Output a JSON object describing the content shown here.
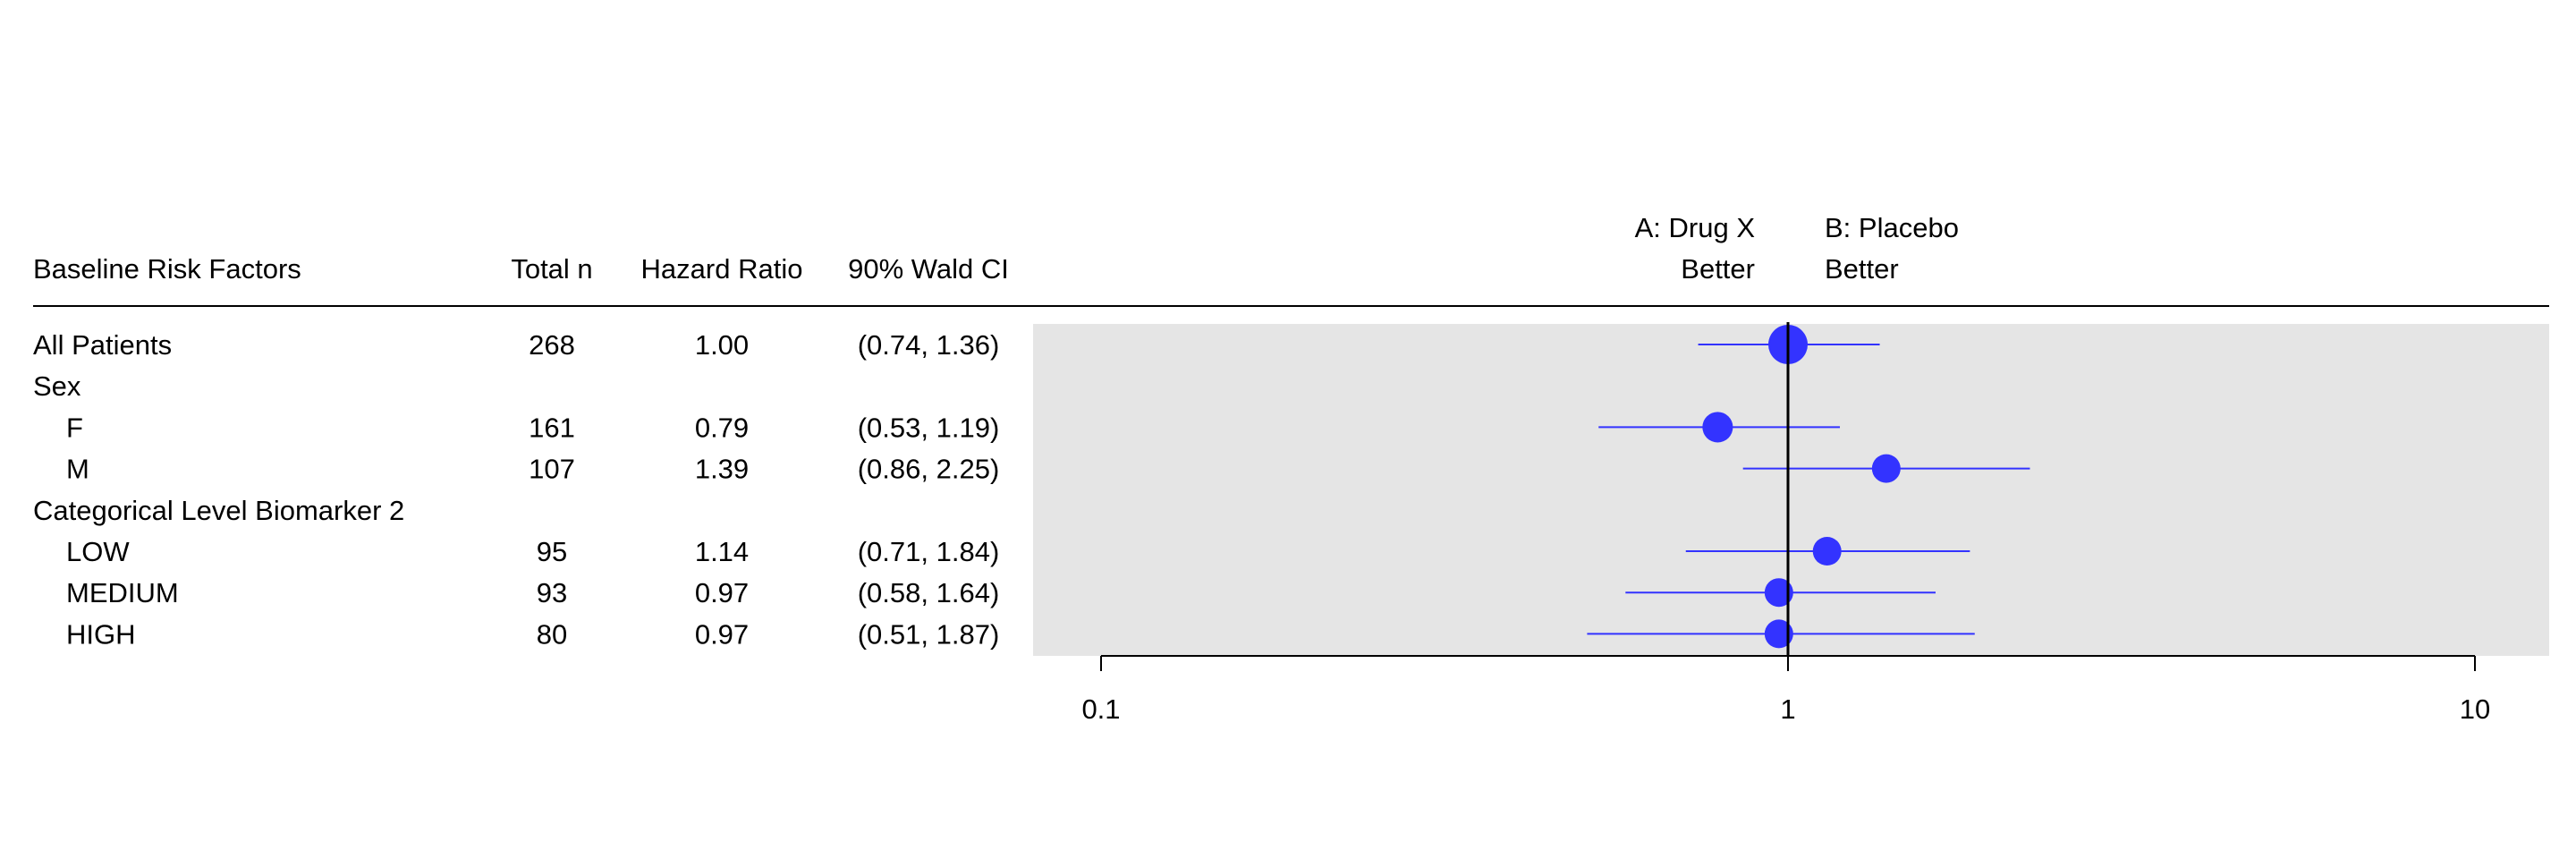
{
  "chart_data": {
    "type": "forest",
    "columns": [
      "Baseline Risk Factors",
      "Total n",
      "Hazard Ratio",
      "90% Wald CI"
    ],
    "favors_left": [
      "A: Drug X",
      "Better"
    ],
    "favors_right": [
      "B: Placebo",
      "Better"
    ],
    "x_scale": "log",
    "xlim": [
      0.1,
      10
    ],
    "x_ticks": [
      0.1,
      1,
      10
    ],
    "x_tick_labels": [
      "0.1",
      "1",
      "10"
    ],
    "reference_line": 1,
    "rows": [
      {
        "label": "All Patients",
        "indent": 0,
        "n": "268",
        "hr": "1.00",
        "ci": "(0.74, 1.36)",
        "est": 1.0,
        "lo": 0.74,
        "hi": 1.36
      },
      {
        "label": "Sex",
        "indent": 0
      },
      {
        "label": "F",
        "indent": 1,
        "n": "161",
        "hr": "0.79",
        "ci": "(0.53, 1.19)",
        "est": 0.79,
        "lo": 0.53,
        "hi": 1.19
      },
      {
        "label": "M",
        "indent": 1,
        "n": "107",
        "hr": "1.39",
        "ci": "(0.86, 2.25)",
        "est": 1.39,
        "lo": 0.86,
        "hi": 2.25
      },
      {
        "label": "Categorical Level Biomarker 2",
        "indent": 0
      },
      {
        "label": "LOW",
        "indent": 1,
        "n": "95",
        "hr": "1.14",
        "ci": "(0.71, 1.84)",
        "est": 1.14,
        "lo": 0.71,
        "hi": 1.84
      },
      {
        "label": "MEDIUM",
        "indent": 1,
        "n": "93",
        "hr": "0.97",
        "ci": "(0.58, 1.64)",
        "est": 0.97,
        "lo": 0.58,
        "hi": 1.64
      },
      {
        "label": "HIGH",
        "indent": 1,
        "n": "80",
        "hr": "0.97",
        "ci": "(0.51, 1.87)",
        "est": 0.97,
        "lo": 0.51,
        "hi": 1.87
      }
    ],
    "colors": {
      "point": "#3333ff",
      "panel": "#e5e5e5",
      "line": "#000000"
    }
  }
}
